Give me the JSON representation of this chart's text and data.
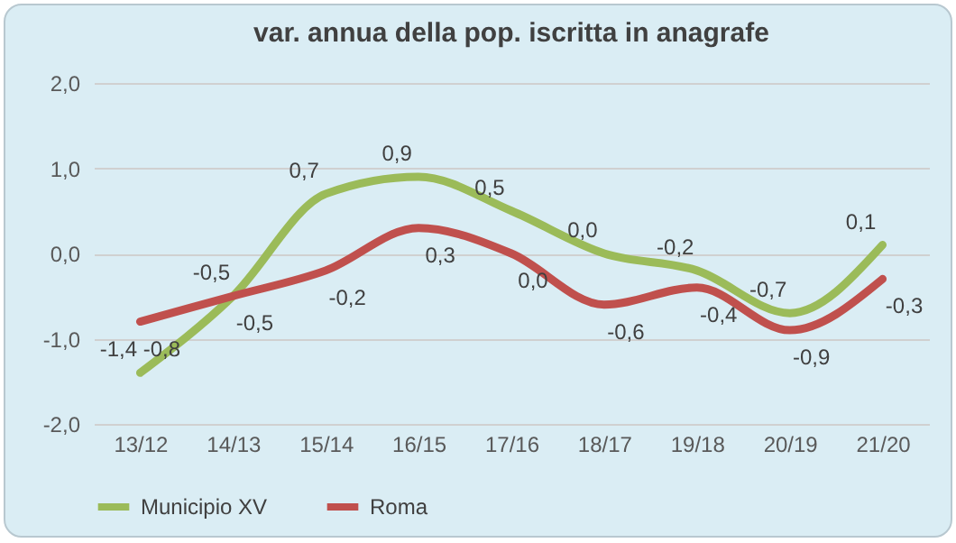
{
  "chart_data": {
    "type": "line",
    "title": "var. annua della pop. iscritta in anagrafe",
    "categories": [
      "13/12",
      "14/13",
      "15/14",
      "16/15",
      "17/16",
      "18/17",
      "19/18",
      "20/19",
      "21/20"
    ],
    "series": [
      {
        "name": "Municipio XV",
        "color": "#9bbb59",
        "values": [
          -1.4,
          -0.5,
          0.7,
          0.9,
          0.5,
          0.0,
          -0.2,
          -0.7,
          0.1
        ],
        "value_labels": [
          "-1,4",
          "-0,5",
          "0,7",
          "0,9",
          "0,5",
          "0,0",
          "-0,2",
          "-0,7",
          "0,1"
        ]
      },
      {
        "name": "Roma",
        "color": "#c0504d",
        "values": [
          -0.8,
          -0.5,
          -0.2,
          0.3,
          0.0,
          -0.6,
          -0.4,
          -0.9,
          -0.3
        ],
        "value_labels": [
          "-0,8",
          "-0,5",
          "-0,2",
          "0,3",
          "0,0",
          "-0,6",
          "-0,4",
          "-0,9",
          "-0,3"
        ]
      }
    ],
    "ylim": [
      -2,
      2
    ],
    "yticks": [
      {
        "value": -2,
        "label": "-2,0"
      },
      {
        "value": -1,
        "label": "-1,0"
      },
      {
        "value": 0,
        "label": "0,0"
      },
      {
        "value": 1,
        "label": "1,0"
      },
      {
        "value": 2,
        "label": "2,0"
      }
    ],
    "grid": "y",
    "legend": "bottom",
    "marker": "none",
    "line_style": "solid"
  }
}
